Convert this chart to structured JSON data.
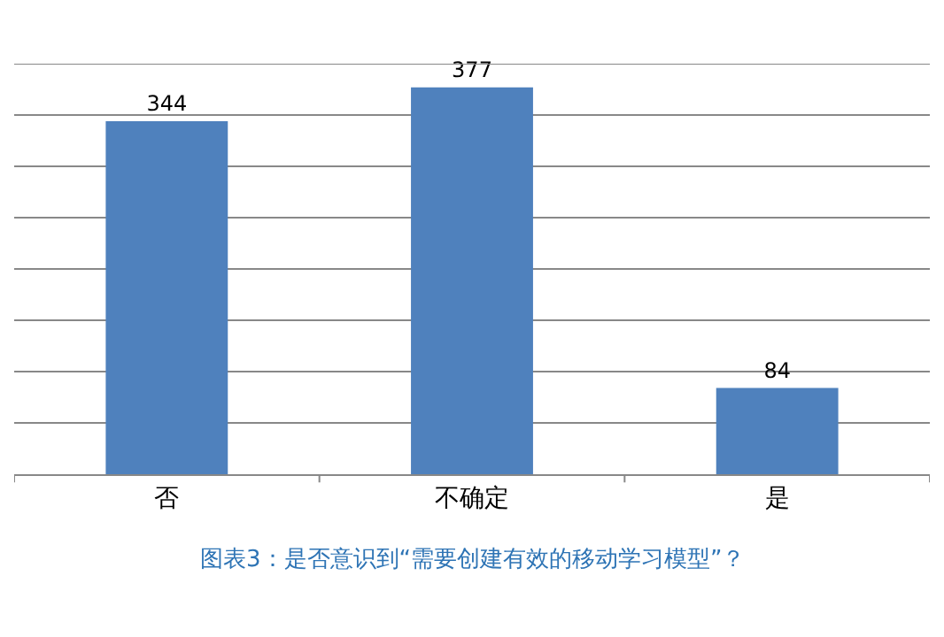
{
  "chart_data": {
    "type": "bar",
    "categories": [
      "否",
      "不确定",
      "是"
    ],
    "values": [
      344,
      377,
      84
    ],
    "color": "#4f81bd",
    "data_labels": true,
    "ylim": [
      0,
      400
    ],
    "yticks": [
      {
        "value": 0,
        "label": null
      },
      {
        "value": 50,
        "label": null
      },
      {
        "value": 100,
        "label": null
      },
      {
        "value": 150,
        "label": null
      },
      {
        "value": 200,
        "label": null
      },
      {
        "value": 250,
        "label": null
      },
      {
        "value": 300,
        "label": null
      },
      {
        "value": 350,
        "label": null
      },
      {
        "value": 400,
        "label": null
      }
    ],
    "grid": "y",
    "tick_labels": "x",
    "annotations": [
      "图表3：是否意识到“需要创建有效的移动学习模型”？"
    ]
  }
}
